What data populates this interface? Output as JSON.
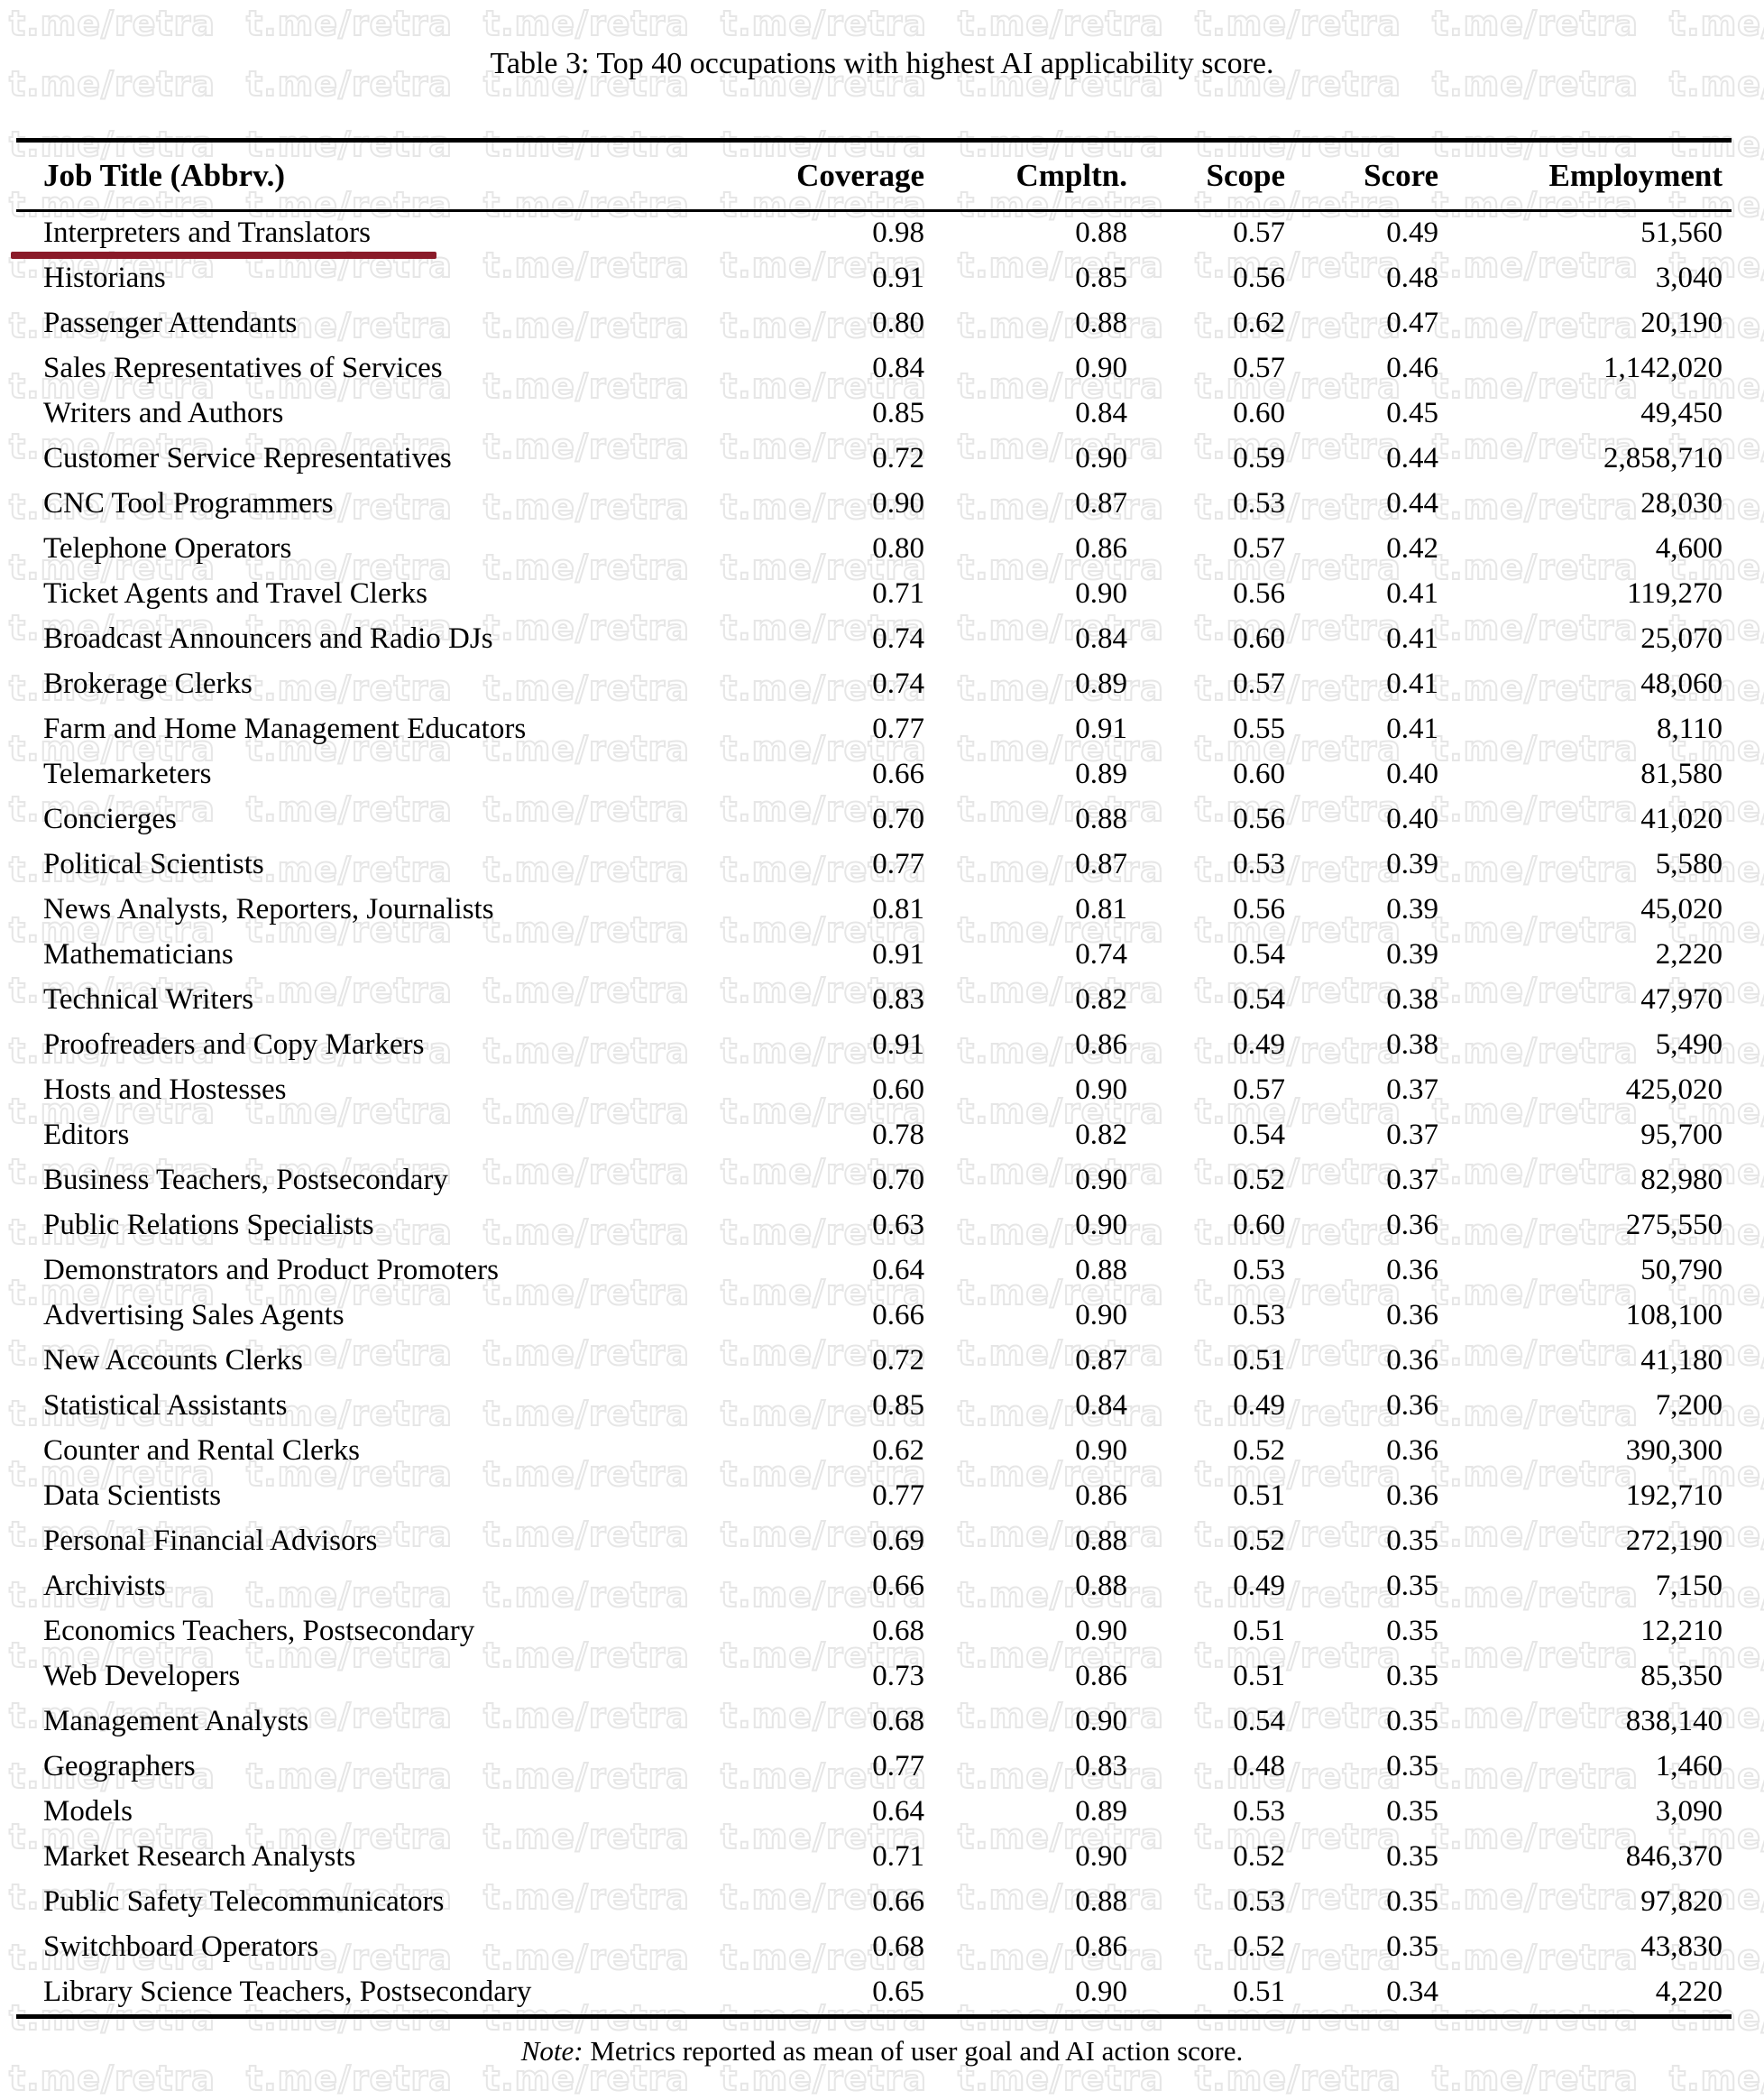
{
  "page": {
    "title": "Table 3: Top 40 occupations with highest AI applicability score.",
    "note_label": "Note:",
    "note_text": "Metrics reported as mean of user goal and AI action score.",
    "watermark_text": "t.me/retra"
  },
  "colors": {
    "highlight_underline": "#8a1b29",
    "rule": "#000000",
    "watermark_outline": "#e6e6e6"
  },
  "table": {
    "columns": [
      "Job Title (Abbrv.)",
      "Coverage",
      "Cmpltn.",
      "Scope",
      "Score",
      "Employment"
    ],
    "highlighted_row_index": 0,
    "rows": [
      [
        "Interpreters and Translators",
        "0.98",
        "0.88",
        "0.57",
        "0.49",
        "51,560"
      ],
      [
        "Historians",
        "0.91",
        "0.85",
        "0.56",
        "0.48",
        "3,040"
      ],
      [
        "Passenger Attendants",
        "0.80",
        "0.88",
        "0.62",
        "0.47",
        "20,190"
      ],
      [
        "Sales Representatives of Services",
        "0.84",
        "0.90",
        "0.57",
        "0.46",
        "1,142,020"
      ],
      [
        "Writers and Authors",
        "0.85",
        "0.84",
        "0.60",
        "0.45",
        "49,450"
      ],
      [
        "Customer Service Representatives",
        "0.72",
        "0.90",
        "0.59",
        "0.44",
        "2,858,710"
      ],
      [
        "CNC Tool Programmers",
        "0.90",
        "0.87",
        "0.53",
        "0.44",
        "28,030"
      ],
      [
        "Telephone Operators",
        "0.80",
        "0.86",
        "0.57",
        "0.42",
        "4,600"
      ],
      [
        "Ticket Agents and Travel Clerks",
        "0.71",
        "0.90",
        "0.56",
        "0.41",
        "119,270"
      ],
      [
        "Broadcast Announcers and Radio DJs",
        "0.74",
        "0.84",
        "0.60",
        "0.41",
        "25,070"
      ],
      [
        "Brokerage Clerks",
        "0.74",
        "0.89",
        "0.57",
        "0.41",
        "48,060"
      ],
      [
        "Farm and Home Management Educators",
        "0.77",
        "0.91",
        "0.55",
        "0.41",
        "8,110"
      ],
      [
        "Telemarketers",
        "0.66",
        "0.89",
        "0.60",
        "0.40",
        "81,580"
      ],
      [
        "Concierges",
        "0.70",
        "0.88",
        "0.56",
        "0.40",
        "41,020"
      ],
      [
        "Political Scientists",
        "0.77",
        "0.87",
        "0.53",
        "0.39",
        "5,580"
      ],
      [
        "News Analysts, Reporters, Journalists",
        "0.81",
        "0.81",
        "0.56",
        "0.39",
        "45,020"
      ],
      [
        "Mathematicians",
        "0.91",
        "0.74",
        "0.54",
        "0.39",
        "2,220"
      ],
      [
        "Technical Writers",
        "0.83",
        "0.82",
        "0.54",
        "0.38",
        "47,970"
      ],
      [
        "Proofreaders and Copy Markers",
        "0.91",
        "0.86",
        "0.49",
        "0.38",
        "5,490"
      ],
      [
        "Hosts and Hostesses",
        "0.60",
        "0.90",
        "0.57",
        "0.37",
        "425,020"
      ],
      [
        "Editors",
        "0.78",
        "0.82",
        "0.54",
        "0.37",
        "95,700"
      ],
      [
        "Business Teachers, Postsecondary",
        "0.70",
        "0.90",
        "0.52",
        "0.37",
        "82,980"
      ],
      [
        "Public Relations Specialists",
        "0.63",
        "0.90",
        "0.60",
        "0.36",
        "275,550"
      ],
      [
        "Demonstrators and Product Promoters",
        "0.64",
        "0.88",
        "0.53",
        "0.36",
        "50,790"
      ],
      [
        "Advertising Sales Agents",
        "0.66",
        "0.90",
        "0.53",
        "0.36",
        "108,100"
      ],
      [
        "New Accounts Clerks",
        "0.72",
        "0.87",
        "0.51",
        "0.36",
        "41,180"
      ],
      [
        "Statistical Assistants",
        "0.85",
        "0.84",
        "0.49",
        "0.36",
        "7,200"
      ],
      [
        "Counter and Rental Clerks",
        "0.62",
        "0.90",
        "0.52",
        "0.36",
        "390,300"
      ],
      [
        "Data Scientists",
        "0.77",
        "0.86",
        "0.51",
        "0.36",
        "192,710"
      ],
      [
        "Personal Financial Advisors",
        "0.69",
        "0.88",
        "0.52",
        "0.35",
        "272,190"
      ],
      [
        "Archivists",
        "0.66",
        "0.88",
        "0.49",
        "0.35",
        "7,150"
      ],
      [
        "Economics Teachers, Postsecondary",
        "0.68",
        "0.90",
        "0.51",
        "0.35",
        "12,210"
      ],
      [
        "Web Developers",
        "0.73",
        "0.86",
        "0.51",
        "0.35",
        "85,350"
      ],
      [
        "Management Analysts",
        "0.68",
        "0.90",
        "0.54",
        "0.35",
        "838,140"
      ],
      [
        "Geographers",
        "0.77",
        "0.83",
        "0.48",
        "0.35",
        "1,460"
      ],
      [
        "Models",
        "0.64",
        "0.89",
        "0.53",
        "0.35",
        "3,090"
      ],
      [
        "Market Research Analysts",
        "0.71",
        "0.90",
        "0.52",
        "0.35",
        "846,370"
      ],
      [
        "Public Safety Telecommunicators",
        "0.66",
        "0.88",
        "0.53",
        "0.35",
        "97,820"
      ],
      [
        "Switchboard Operators",
        "0.68",
        "0.86",
        "0.52",
        "0.35",
        "43,830"
      ],
      [
        "Library Science Teachers, Postsecondary",
        "0.65",
        "0.90",
        "0.51",
        "0.34",
        "4,220"
      ]
    ]
  }
}
